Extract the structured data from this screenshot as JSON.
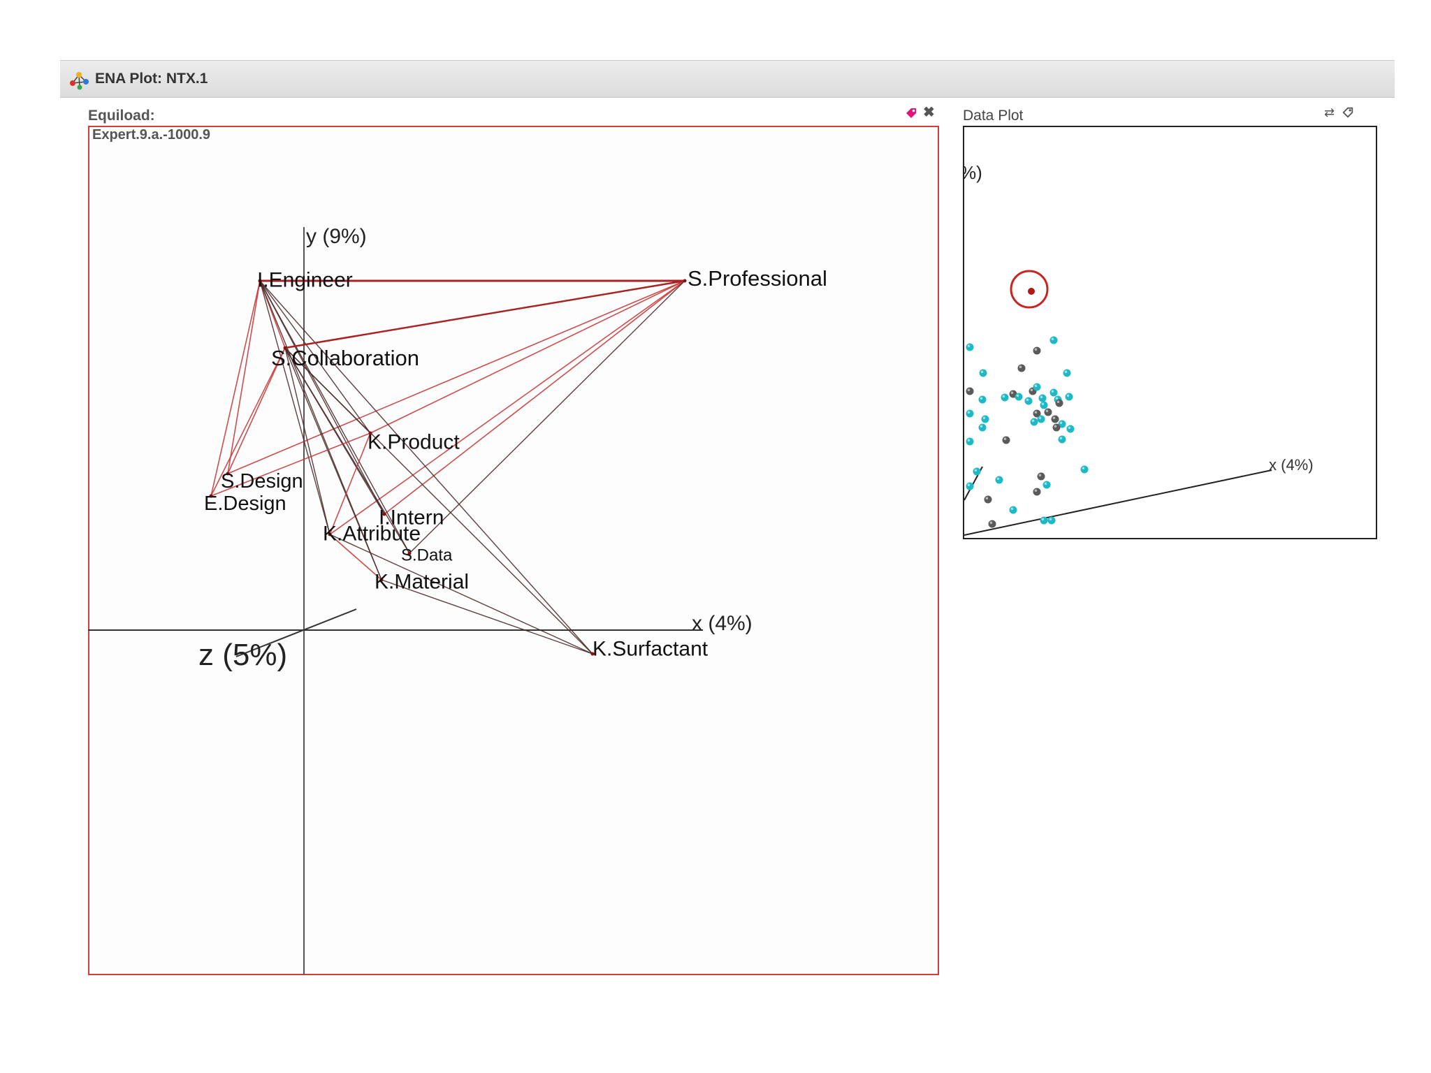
{
  "window": {
    "title": "ENA Plot: NTX.1",
    "icon": "network-graph-icon"
  },
  "ena_panel": {
    "label": "Equiload:",
    "unit_name": "Expert.9.a.-1000.9",
    "icons": [
      "tag-icon",
      "close-icon"
    ],
    "frame_color": "#d23c3c",
    "axes": {
      "x_label": "x (4%)",
      "y_label": "y (9%)",
      "z_label": "z (5%)"
    },
    "nodes": [
      {
        "id": "I.Engineer",
        "label": "I.Engineer"
      },
      {
        "id": "S.Professional",
        "label": "S.Professional"
      },
      {
        "id": "S.Collaboration",
        "label": "S.Collaboration"
      },
      {
        "id": "K.Product",
        "label": "K.Product"
      },
      {
        "id": "S.Design",
        "label": "S.Design"
      },
      {
        "id": "E.Design",
        "label": "E.Design"
      },
      {
        "id": "I.Intern",
        "label": "I.Intern"
      },
      {
        "id": "K.Attribute",
        "label": "K.Attribute"
      },
      {
        "id": "S.Data",
        "label": "S.Data"
      },
      {
        "id": "K.Material",
        "label": "K.Material"
      },
      {
        "id": "K.Surfactant",
        "label": "K.Surfactant"
      }
    ],
    "edges": [
      [
        "I.Engineer",
        "S.Professional",
        "red"
      ],
      [
        "S.Collaboration",
        "S.Professional",
        "red"
      ],
      [
        "K.Product",
        "S.Professional",
        "red"
      ],
      [
        "S.Design",
        "S.Professional",
        "red"
      ],
      [
        "I.Intern",
        "S.Professional",
        "red"
      ],
      [
        "K.Attribute",
        "S.Professional",
        "red"
      ],
      [
        "S.Data",
        "S.Professional",
        "dark"
      ],
      [
        "I.Engineer",
        "S.Collaboration",
        "red"
      ],
      [
        "I.Engineer",
        "K.Product",
        "dark"
      ],
      [
        "I.Engineer",
        "S.Design",
        "red"
      ],
      [
        "I.Engineer",
        "E.Design",
        "red"
      ],
      [
        "I.Engineer",
        "I.Intern",
        "dark"
      ],
      [
        "I.Engineer",
        "K.Attribute",
        "dark"
      ],
      [
        "I.Engineer",
        "S.Data",
        "dark"
      ],
      [
        "I.Engineer",
        "K.Material",
        "dark"
      ],
      [
        "I.Engineer",
        "K.Surfactant",
        "dark"
      ],
      [
        "S.Collaboration",
        "K.Product",
        "dark"
      ],
      [
        "S.Collaboration",
        "S.Design",
        "red"
      ],
      [
        "S.Collaboration",
        "E.Design",
        "red"
      ],
      [
        "S.Collaboration",
        "I.Intern",
        "dark"
      ],
      [
        "S.Collaboration",
        "K.Attribute",
        "dark"
      ],
      [
        "S.Collaboration",
        "S.Data",
        "dark"
      ],
      [
        "S.Collaboration",
        "K.Material",
        "dark"
      ],
      [
        "S.Collaboration",
        "K.Surfactant",
        "dark"
      ],
      [
        "K.Product",
        "K.Attribute",
        "red"
      ],
      [
        "K.Product",
        "E.Design",
        "red"
      ],
      [
        "K.Attribute",
        "K.Surfactant",
        "dark"
      ],
      [
        "K.Attribute",
        "K.Material",
        "red"
      ],
      [
        "K.Material",
        "K.Surfactant",
        "dark"
      ]
    ]
  },
  "data_panel": {
    "label": "Data Plot",
    "icons": [
      "swap-icon",
      "tag-icon"
    ],
    "axes": {
      "x_label": "x (4%)",
      "y_label_partial": "%)"
    },
    "highlight_color": "#cc2222",
    "point_colors": {
      "group_a": "#1fb8c4",
      "group_b": "#5a5a5a"
    }
  }
}
